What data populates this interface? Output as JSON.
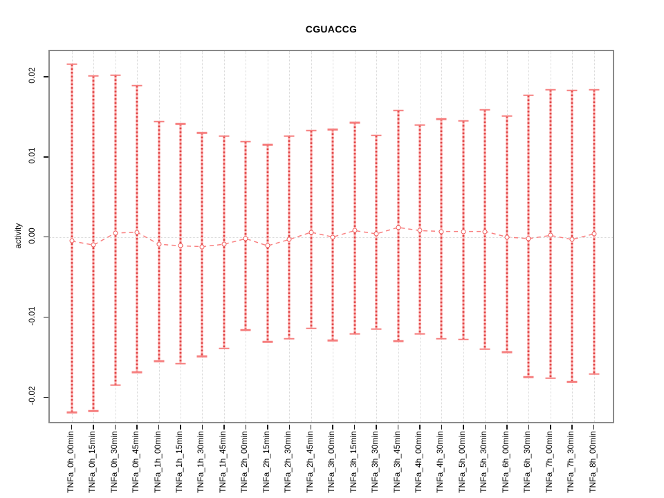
{
  "title": "CGUACCG",
  "y_axis": {
    "label": "activity",
    "tick_labels": [
      "0.02",
      "0.01",
      "0.00",
      "-0.01",
      "-0.02"
    ],
    "tick_values": [
      0.02,
      0.01,
      0.0,
      -0.01,
      -0.02
    ]
  },
  "chart_data": {
    "type": "errorbar",
    "title": "CGUACCG",
    "xlabel": "",
    "ylabel": "activity",
    "ylim": [
      -0.0234,
      0.0232
    ],
    "grid": "vertical dotted gridline at each category; dotted horizontal line at y=0",
    "legend": "none",
    "categories": [
      "TNFa_0h_00min",
      "TNFa_0h_15min",
      "TNFa_0h_30min",
      "TNFa_0h_45min",
      "TNFa_1h_00min",
      "TNFa_1h_15min",
      "TNFa_1h_30min",
      "TNFa_1h_45min",
      "TNFa_2h_00min",
      "TNFa_2h_15min",
      "TNFa_2h_30min",
      "TNFa_2h_45min",
      "TNFa_3h_00min",
      "TNFa_3h_15min",
      "TNFa_3h_30min",
      "TNFa_3h_45min",
      "TNFa_4h_00min",
      "TNFa_4h_30min",
      "TNFa_5h_00min",
      "TNFa_5h_30min",
      "TNFa_6h_00min",
      "TNFa_6h_30min",
      "TNFa_7h_00min",
      "TNFa_7h_30min",
      "TNFa_8h_00min"
    ],
    "series": [
      {
        "name": "activity",
        "values": [
          -0.0005,
          -0.001,
          0.0005,
          0.0006,
          -0.0009,
          -0.0011,
          -0.0012,
          -0.0009,
          -0.0002,
          -0.0011,
          -0.0003,
          0.0006,
          0.0,
          0.0008,
          0.0004,
          0.0012,
          0.0008,
          0.0007,
          0.0007,
          0.0007,
          0.0,
          -0.0002,
          0.0002,
          -0.0003,
          0.0004
        ],
        "lower": [
          -0.0219,
          -0.0217,
          -0.0185,
          -0.0169,
          -0.0155,
          -0.0158,
          -0.0149,
          -0.0139,
          -0.0116,
          -0.0131,
          -0.0127,
          -0.0114,
          -0.0129,
          -0.0121,
          -0.0115,
          -0.013,
          -0.0121,
          -0.0127,
          -0.0128,
          -0.014,
          -0.0144,
          -0.0175,
          -0.0176,
          -0.0181,
          -0.0171
        ],
        "upper": [
          0.0216,
          0.0201,
          0.0202,
          0.0189,
          0.0144,
          0.0141,
          0.013,
          0.0126,
          0.0119,
          0.0115,
          0.0126,
          0.0133,
          0.0134,
          0.0143,
          0.0127,
          0.0158,
          0.014,
          0.0147,
          0.0145,
          0.0159,
          0.0151,
          0.0177,
          0.0184,
          0.0183,
          0.0184
        ]
      }
    ],
    "colors": {
      "bar_fill": "#ffb3b3",
      "bar_dash": "#e04646",
      "cap": "#f67f7f",
      "point_stroke": "#ef5a5a",
      "connector": "#f98080",
      "grid": "#d8d8d8",
      "box": "#8a8a8a",
      "text": "#000000"
    }
  }
}
